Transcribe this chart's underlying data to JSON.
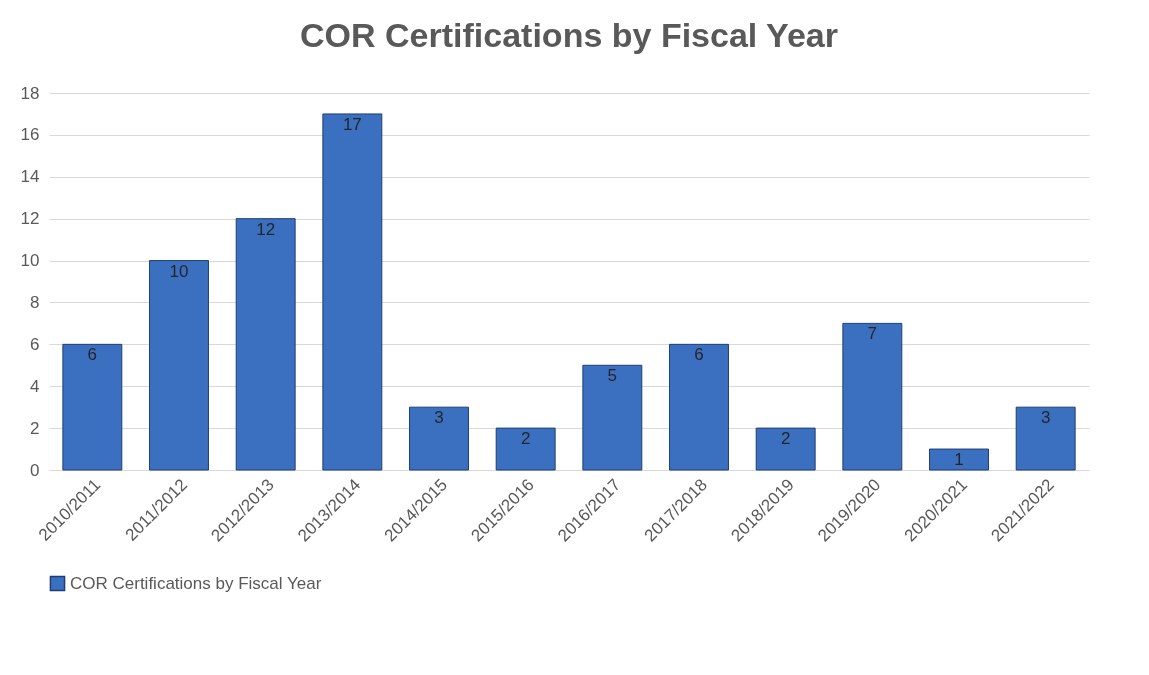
{
  "chart_data": {
    "type": "bar",
    "title": "COR Certifications by Fiscal Year",
    "categories": [
      "2010/2011",
      "2011/2012",
      "2012/2013",
      "2013/2014",
      "2014/2015",
      "2015/2016",
      "2016/2017",
      "2017/2018",
      "2018/2019",
      "2019/2020",
      "2020/2021",
      "2021/2022"
    ],
    "series": [
      {
        "name": "COR Certifications by Fiscal Year",
        "color": "#3b6fc0",
        "values": [
          6,
          10,
          12,
          17,
          3,
          2,
          5,
          6,
          2,
          7,
          1,
          3
        ]
      }
    ],
    "ylim": [
      0,
      18
    ],
    "yticks": [
      0,
      2,
      4,
      6,
      8,
      10,
      12,
      14,
      16,
      18
    ],
    "grid": "y",
    "legend": "bottom",
    "data_labels": true
  }
}
